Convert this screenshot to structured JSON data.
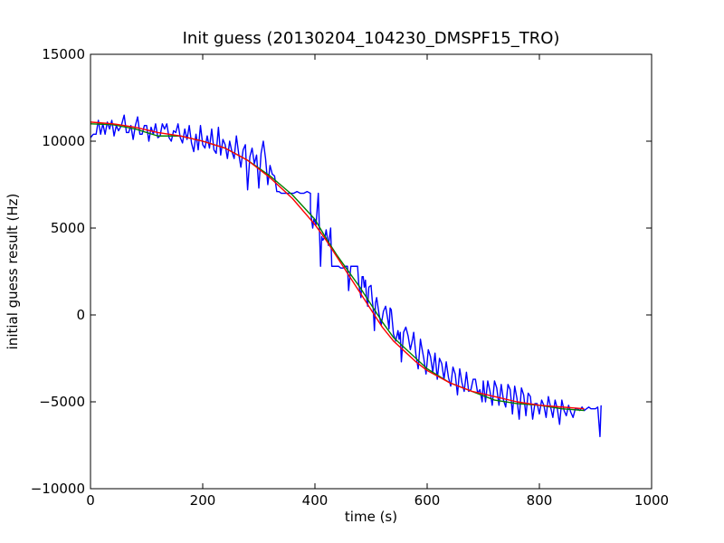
{
  "chart_data": {
    "type": "line",
    "title": "Init guess (20130204_104230_DMSPF15_TRO)",
    "xlabel": "time (s)",
    "ylabel": "initial guess result (Hz)",
    "xlim": [
      0,
      1000
    ],
    "ylim": [
      -10000,
      15000
    ],
    "xticks": [
      0,
      200,
      400,
      600,
      800,
      1000
    ],
    "yticks": [
      -10000,
      -5000,
      0,
      5000,
      10000,
      15000
    ],
    "xtick_labels": [
      "0",
      "200",
      "400",
      "600",
      "800",
      "1000"
    ],
    "ytick_labels": [
      "−10000",
      "−5000",
      "0",
      "5000",
      "10000",
      "15000"
    ],
    "grid": false,
    "legend": "none",
    "series": [
      {
        "color": "#0000ff",
        "points": [
          [
            0,
            10200
          ],
          [
            5,
            10400
          ],
          [
            10,
            10400
          ],
          [
            14,
            11200
          ],
          [
            18,
            10400
          ],
          [
            22,
            11000
          ],
          [
            26,
            10400
          ],
          [
            30,
            11100
          ],
          [
            34,
            10700
          ],
          [
            38,
            11200
          ],
          [
            42,
            10300
          ],
          [
            46,
            10900
          ],
          [
            50,
            10600
          ],
          [
            55,
            10900
          ],
          [
            60,
            11500
          ],
          [
            64,
            10500
          ],
          [
            68,
            10500
          ],
          [
            72,
            10900
          ],
          [
            76,
            10100
          ],
          [
            80,
            10900
          ],
          [
            84,
            11400
          ],
          [
            88,
            10400
          ],
          [
            92,
            10400
          ],
          [
            96,
            10900
          ],
          [
            100,
            10900
          ],
          [
            104,
            10000
          ],
          [
            108,
            10800
          ],
          [
            112,
            10400
          ],
          [
            116,
            11000
          ],
          [
            120,
            10200
          ],
          [
            124,
            10300
          ],
          [
            128,
            11000
          ],
          [
            132,
            10700
          ],
          [
            136,
            11000
          ],
          [
            140,
            10200
          ],
          [
            144,
            10000
          ],
          [
            148,
            10600
          ],
          [
            152,
            10500
          ],
          [
            156,
            11000
          ],
          [
            160,
            10200
          ],
          [
            164,
            9900
          ],
          [
            168,
            10700
          ],
          [
            172,
            10100
          ],
          [
            176,
            10900
          ],
          [
            180,
            9900
          ],
          [
            184,
            9400
          ],
          [
            188,
            10400
          ],
          [
            192,
            9500
          ],
          [
            196,
            10900
          ],
          [
            200,
            9800
          ],
          [
            204,
            9600
          ],
          [
            208,
            10300
          ],
          [
            212,
            9600
          ],
          [
            216,
            10700
          ],
          [
            220,
            9500
          ],
          [
            224,
            9300
          ],
          [
            228,
            10800
          ],
          [
            232,
            9200
          ],
          [
            236,
            10100
          ],
          [
            240,
            9800
          ],
          [
            244,
            9000
          ],
          [
            248,
            10000
          ],
          [
            252,
            9400
          ],
          [
            256,
            9000
          ],
          [
            260,
            10300
          ],
          [
            264,
            9300
          ],
          [
            268,
            8500
          ],
          [
            272,
            9500
          ],
          [
            276,
            9800
          ],
          [
            280,
            7200
          ],
          [
            284,
            9100
          ],
          [
            288,
            9600
          ],
          [
            292,
            8700
          ],
          [
            296,
            9200
          ],
          [
            300,
            7300
          ],
          [
            304,
            9300
          ],
          [
            308,
            10000
          ],
          [
            312,
            9000
          ],
          [
            316,
            7500
          ],
          [
            320,
            8600
          ],
          [
            324,
            8100
          ],
          [
            328,
            8000
          ],
          [
            332,
            7100
          ],
          [
            336,
            7100
          ],
          [
            340,
            7000
          ],
          [
            344,
            7000
          ],
          [
            350,
            7000
          ],
          [
            356,
            7000
          ],
          [
            362,
            7000
          ],
          [
            368,
            7100
          ],
          [
            374,
            7000
          ],
          [
            380,
            7000
          ],
          [
            386,
            7100
          ],
          [
            392,
            7000
          ],
          [
            392,
            6000
          ],
          [
            396,
            5000
          ],
          [
            398,
            5500
          ],
          [
            402,
            5200
          ],
          [
            406,
            7000
          ],
          [
            408,
            4900
          ],
          [
            410,
            2800
          ],
          [
            412,
            4500
          ],
          [
            414,
            4300
          ],
          [
            418,
            4500
          ],
          [
            420,
            4900
          ],
          [
            424,
            4000
          ],
          [
            428,
            5000
          ],
          [
            430,
            2800
          ],
          [
            436,
            2800
          ],
          [
            442,
            2800
          ],
          [
            446,
            2700
          ],
          [
            450,
            2700
          ],
          [
            454,
            2800
          ],
          [
            458,
            2800
          ],
          [
            460,
            1400
          ],
          [
            464,
            2800
          ],
          [
            470,
            2800
          ],
          [
            476,
            2800
          ],
          [
            478,
            1800
          ],
          [
            482,
            1000
          ],
          [
            484,
            2200
          ],
          [
            486,
            2200
          ],
          [
            488,
            1600
          ],
          [
            490,
            2000
          ],
          [
            492,
            1000
          ],
          [
            494,
            500
          ],
          [
            496,
            1600
          ],
          [
            500,
            1700
          ],
          [
            502,
            900
          ],
          [
            504,
            300
          ],
          [
            506,
            -900
          ],
          [
            508,
            700
          ],
          [
            510,
            1000
          ],
          [
            514,
            100
          ],
          [
            518,
            -600
          ],
          [
            522,
            200
          ],
          [
            526,
            500
          ],
          [
            530,
            -300
          ],
          [
            532,
            -800
          ],
          [
            534,
            400
          ],
          [
            536,
            300
          ],
          [
            540,
            -1100
          ],
          [
            544,
            -1500
          ],
          [
            548,
            -900
          ],
          [
            550,
            -1400
          ],
          [
            552,
            -1000
          ],
          [
            554,
            -2700
          ],
          [
            558,
            -1000
          ],
          [
            562,
            -700
          ],
          [
            566,
            -1200
          ],
          [
            570,
            -2000
          ],
          [
            574,
            -1400
          ],
          [
            576,
            -1000
          ],
          [
            580,
            -2300
          ],
          [
            584,
            -3100
          ],
          [
            588,
            -1400
          ],
          [
            590,
            -1800
          ],
          [
            594,
            -2500
          ],
          [
            598,
            -3400
          ],
          [
            602,
            -2000
          ],
          [
            606,
            -2400
          ],
          [
            610,
            -3300
          ],
          [
            614,
            -2200
          ],
          [
            618,
            -3700
          ],
          [
            622,
            -2500
          ],
          [
            626,
            -2800
          ],
          [
            630,
            -3700
          ],
          [
            634,
            -2700
          ],
          [
            638,
            -3600
          ],
          [
            642,
            -4100
          ],
          [
            646,
            -3000
          ],
          [
            650,
            -3400
          ],
          [
            654,
            -4600
          ],
          [
            658,
            -3100
          ],
          [
            662,
            -3900
          ],
          [
            666,
            -4400
          ],
          [
            670,
            -3300
          ],
          [
            674,
            -4400
          ],
          [
            678,
            -4300
          ],
          [
            682,
            -3700
          ],
          [
            686,
            -3700
          ],
          [
            690,
            -4500
          ],
          [
            694,
            -4300
          ],
          [
            698,
            -5000
          ],
          [
            700,
            -3800
          ],
          [
            704,
            -5000
          ],
          [
            708,
            -3800
          ],
          [
            712,
            -4400
          ],
          [
            716,
            -5200
          ],
          [
            720,
            -3800
          ],
          [
            724,
            -4200
          ],
          [
            728,
            -5200
          ],
          [
            732,
            -4000
          ],
          [
            736,
            -4900
          ],
          [
            740,
            -5300
          ],
          [
            744,
            -4000
          ],
          [
            748,
            -4300
          ],
          [
            752,
            -5700
          ],
          [
            756,
            -4100
          ],
          [
            760,
            -4800
          ],
          [
            764,
            -6000
          ],
          [
            768,
            -4200
          ],
          [
            772,
            -4600
          ],
          [
            776,
            -5800
          ],
          [
            780,
            -4500
          ],
          [
            784,
            -4700
          ],
          [
            788,
            -6000
          ],
          [
            792,
            -5100
          ],
          [
            796,
            -5100
          ],
          [
            800,
            -5700
          ],
          [
            804,
            -4900
          ],
          [
            808,
            -5200
          ],
          [
            812,
            -5900
          ],
          [
            816,
            -4700
          ],
          [
            820,
            -5300
          ],
          [
            824,
            -5900
          ],
          [
            828,
            -4900
          ],
          [
            832,
            -5400
          ],
          [
            836,
            -6300
          ],
          [
            840,
            -4900
          ],
          [
            844,
            -5500
          ],
          [
            848,
            -5800
          ],
          [
            852,
            -5200
          ],
          [
            856,
            -5600
          ],
          [
            860,
            -5900
          ],
          [
            864,
            -5400
          ],
          [
            868,
            -5400
          ],
          [
            872,
            -5500
          ],
          [
            876,
            -5300
          ],
          [
            880,
            -5500
          ],
          [
            884,
            -5400
          ],
          [
            888,
            -5300
          ],
          [
            892,
            -5400
          ],
          [
            896,
            -5400
          ],
          [
            900,
            -5400
          ],
          [
            904,
            -5300
          ],
          [
            908,
            -7000
          ],
          [
            910,
            -5200
          ]
        ]
      },
      {
        "color": "#008000",
        "points": [
          [
            0,
            11000
          ],
          [
            40,
            10950
          ],
          [
            80,
            10700
          ],
          [
            120,
            10300
          ],
          [
            160,
            10300
          ],
          [
            200,
            10000
          ],
          [
            240,
            9600
          ],
          [
            280,
            8900
          ],
          [
            320,
            8000
          ],
          [
            360,
            6900
          ],
          [
            400,
            5500
          ],
          [
            420,
            4400
          ],
          [
            440,
            3400
          ],
          [
            460,
            2500
          ],
          [
            480,
            1600
          ],
          [
            500,
            600
          ],
          [
            520,
            -400
          ],
          [
            540,
            -1300
          ],
          [
            560,
            -1900
          ],
          [
            580,
            -2500
          ],
          [
            600,
            -3100
          ],
          [
            640,
            -3900
          ],
          [
            680,
            -4400
          ],
          [
            720,
            -4900
          ],
          [
            760,
            -5100
          ],
          [
            800,
            -5200
          ],
          [
            840,
            -5400
          ],
          [
            880,
            -5500
          ]
        ]
      },
      {
        "color": "#ff0000",
        "points": [
          [
            0,
            11100
          ],
          [
            40,
            11000
          ],
          [
            80,
            10800
          ],
          [
            120,
            10500
          ],
          [
            160,
            10300
          ],
          [
            200,
            10000
          ],
          [
            240,
            9600
          ],
          [
            280,
            8900
          ],
          [
            320,
            7900
          ],
          [
            360,
            6700
          ],
          [
            400,
            5200
          ],
          [
            420,
            4300
          ],
          [
            440,
            3300
          ],
          [
            460,
            2300
          ],
          [
            480,
            1300
          ],
          [
            500,
            300
          ],
          [
            520,
            -700
          ],
          [
            540,
            -1500
          ],
          [
            560,
            -2100
          ],
          [
            580,
            -2700
          ],
          [
            600,
            -3200
          ],
          [
            640,
            -3900
          ],
          [
            680,
            -4400
          ],
          [
            720,
            -4700
          ],
          [
            760,
            -5000
          ],
          [
            800,
            -5200
          ],
          [
            840,
            -5300
          ],
          [
            880,
            -5400
          ]
        ]
      }
    ]
  }
}
